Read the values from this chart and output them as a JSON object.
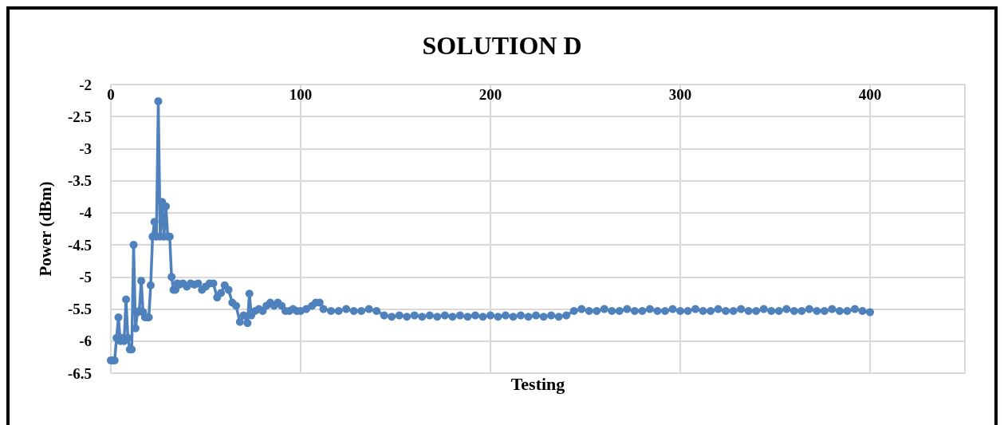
{
  "chart_data": {
    "type": "line",
    "title": "SOLUTION D",
    "xlabel": "Testing",
    "ylabel": "Power (dBm)",
    "x": [
      0,
      1,
      2,
      3,
      4,
      5,
      6,
      7,
      8,
      9,
      10,
      11,
      12,
      13,
      14,
      15,
      16,
      17,
      18,
      19,
      20,
      21,
      22,
      23,
      24,
      25,
      26,
      27,
      28,
      29,
      30,
      31,
      32,
      33,
      34,
      35,
      36,
      38,
      40,
      42,
      44,
      46,
      48,
      50,
      52,
      54,
      56,
      58,
      60,
      62,
      64,
      66,
      68,
      70,
      72,
      73,
      74,
      76,
      78,
      80,
      82,
      84,
      86,
      88,
      90,
      92,
      94,
      96,
      98,
      100,
      103,
      106,
      108,
      110,
      112,
      116,
      120,
      124,
      128,
      132,
      136,
      140,
      144,
      148,
      152,
      156,
      160,
      164,
      168,
      172,
      176,
      180,
      184,
      188,
      192,
      196,
      200,
      204,
      208,
      212,
      216,
      220,
      224,
      228,
      232,
      236,
      240,
      244,
      248,
      252,
      256,
      260,
      264,
      268,
      272,
      276,
      280,
      284,
      288,
      292,
      296,
      300,
      304,
      308,
      312,
      316,
      320,
      324,
      328,
      332,
      336,
      340,
      344,
      348,
      352,
      356,
      360,
      364,
      368,
      372,
      376,
      380,
      384,
      388,
      392,
      396,
      400
    ],
    "series": [
      {
        "color": "#4f81bd",
        "values": [
          -6.3,
          -6.3,
          -6.3,
          -5.95,
          -5.63,
          -6.0,
          -5.95,
          -6.0,
          -5.35,
          -5.95,
          -6.13,
          -6.13,
          -4.5,
          -5.8,
          -5.55,
          -5.53,
          -5.06,
          -5.55,
          -5.63,
          -5.63,
          -5.63,
          -5.13,
          -4.37,
          -4.14,
          -4.37,
          -2.26,
          -4.37,
          -3.83,
          -4.37,
          -3.9,
          -4.37,
          -4.37,
          -5.0,
          -5.2,
          -5.2,
          -5.1,
          -5.12,
          -5.1,
          -5.15,
          -5.1,
          -5.12,
          -5.1,
          -5.2,
          -5.15,
          -5.1,
          -5.1,
          -5.32,
          -5.25,
          -5.13,
          -5.2,
          -5.4,
          -5.45,
          -5.7,
          -5.6,
          -5.72,
          -5.26,
          -5.6,
          -5.53,
          -5.5,
          -5.53,
          -5.45,
          -5.4,
          -5.45,
          -5.4,
          -5.45,
          -5.53,
          -5.53,
          -5.5,
          -5.53,
          -5.53,
          -5.5,
          -5.45,
          -5.4,
          -5.4,
          -5.5,
          -5.53,
          -5.53,
          -5.5,
          -5.53,
          -5.53,
          -5.5,
          -5.53,
          -5.6,
          -5.62,
          -5.6,
          -5.62,
          -5.6,
          -5.62,
          -5.6,
          -5.62,
          -5.6,
          -5.62,
          -5.6,
          -5.62,
          -5.6,
          -5.62,
          -5.6,
          -5.62,
          -5.6,
          -5.62,
          -5.6,
          -5.62,
          -5.6,
          -5.62,
          -5.6,
          -5.62,
          -5.6,
          -5.53,
          -5.5,
          -5.53,
          -5.53,
          -5.5,
          -5.53,
          -5.53,
          -5.5,
          -5.53,
          -5.53,
          -5.5,
          -5.53,
          -5.53,
          -5.5,
          -5.53,
          -5.53,
          -5.5,
          -5.53,
          -5.53,
          -5.5,
          -5.53,
          -5.53,
          -5.5,
          -5.53,
          -5.53,
          -5.5,
          -5.53,
          -5.53,
          -5.5,
          -5.53,
          -5.53,
          -5.5,
          -5.53,
          -5.53,
          -5.5,
          -5.53,
          -5.53,
          -5.5,
          -5.53,
          -5.55
        ]
      }
    ],
    "xlim": [
      0,
      450
    ],
    "xticks": [
      0,
      100,
      200,
      300,
      400,
      {
        "value": 450,
        "label": null
      }
    ],
    "ylim": [
      -6.5,
      -2
    ],
    "yticks": [
      -6.5,
      -6,
      -5.5,
      -5,
      -4.5,
      -4,
      -3.5,
      -3,
      -2.5,
      -2
    ],
    "grid": true,
    "marker": "circle",
    "line_style": "solid"
  }
}
